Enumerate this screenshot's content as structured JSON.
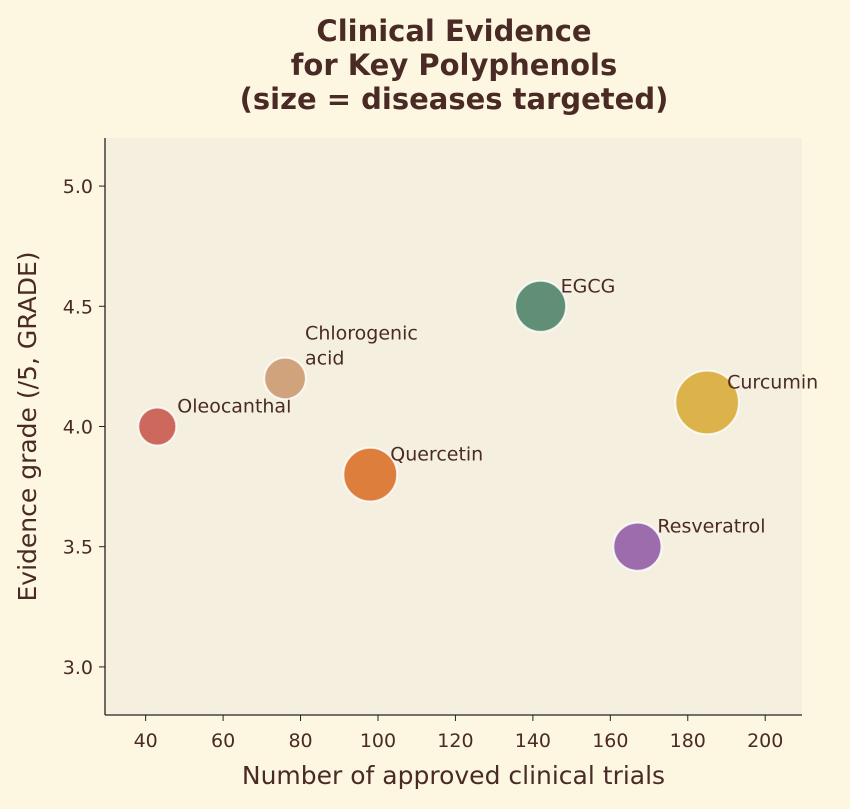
{
  "chart_data": {
    "type": "scatter",
    "title": "Clinical Evidence\nfor Key Polyphenols\n(size = diseases targeted)",
    "xlabel": "Number of approved clinical trials",
    "ylabel": "Evidence grade (/5, GRADE)",
    "xlim": [
      29.5,
      209.5
    ],
    "ylim": [
      2.8,
      5.2
    ],
    "xticks": [
      40,
      60,
      80,
      100,
      120,
      140,
      160,
      180,
      200
    ],
    "yticks": [
      3.0,
      3.5,
      4.0,
      4.5,
      5.0
    ],
    "grid": false,
    "points": [
      {
        "label": "Oleocanthal",
        "x": 43,
        "y": 4.0,
        "size": 5,
        "color": "#c95c50"
      },
      {
        "label": "Chlorogenic\nacid",
        "x": 76,
        "y": 4.2,
        "size": 6,
        "color": "#cc9c74"
      },
      {
        "label": "Quercetin",
        "x": 98,
        "y": 3.8,
        "size": 10,
        "color": "#db742f"
      },
      {
        "label": "EGCG",
        "x": 142,
        "y": 4.5,
        "size": 9,
        "color": "#53876c"
      },
      {
        "label": "Resveratrol",
        "x": 167,
        "y": 3.5,
        "size": 8,
        "color": "#9561a8"
      },
      {
        "label": "Curcumin",
        "x": 185,
        "y": 4.1,
        "size": 14,
        "color": "#d9ae3e"
      }
    ]
  },
  "colors": {
    "background": "#fdf7e1",
    "plot_background": "#f5efe0",
    "text": "#4a2a25"
  }
}
